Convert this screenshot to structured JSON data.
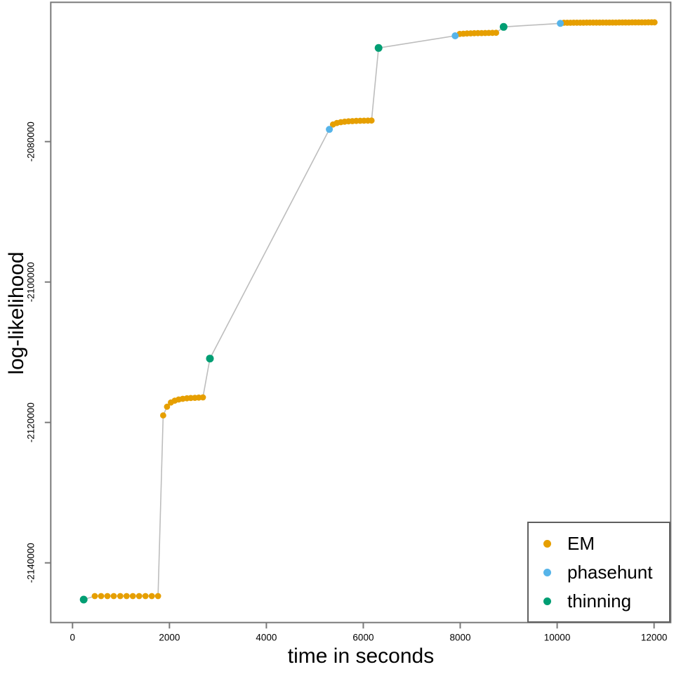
{
  "chart_data": {
    "type": "scatter",
    "title": "",
    "xlabel": "time in seconds",
    "ylabel": "log-likelihood",
    "grid": false,
    "legend_position": "bottom-right",
    "xlim": [
      -449,
      12343
    ],
    "ylim": [
      -2148500,
      -2060160
    ],
    "x_ticks": [
      0,
      2000,
      4000,
      6000,
      8000,
      10000,
      12000
    ],
    "y_ticks": [
      -2080000,
      -2100000,
      -2120000,
      -2140000
    ],
    "line_color": "#bdbdbd",
    "axis_color": "#7a7a7a",
    "tick_label_color": "#000000",
    "series": [
      {
        "name": "EM",
        "color": "#E69F00",
        "marker_radius": 4.4,
        "points": [
          [
            460,
            -2144730
          ],
          [
            590,
            -2144730
          ],
          [
            720,
            -2144730
          ],
          [
            850,
            -2144730
          ],
          [
            985,
            -2144730
          ],
          [
            1115,
            -2144730
          ],
          [
            1245,
            -2144730
          ],
          [
            1375,
            -2144730
          ],
          [
            1505,
            -2144730
          ],
          [
            1635,
            -2144730
          ],
          [
            1765,
            -2144730
          ],
          [
            1870,
            -2119000
          ],
          [
            1950,
            -2117760
          ],
          [
            2030,
            -2117160
          ],
          [
            2110,
            -2116900
          ],
          [
            2190,
            -2116730
          ],
          [
            2275,
            -2116630
          ],
          [
            2360,
            -2116560
          ],
          [
            2440,
            -2116520
          ],
          [
            2525,
            -2116490
          ],
          [
            2605,
            -2116460
          ],
          [
            2690,
            -2116430
          ],
          [
            5375,
            -2077560
          ],
          [
            5455,
            -2077350
          ],
          [
            5535,
            -2077230
          ],
          [
            5615,
            -2077160
          ],
          [
            5695,
            -2077110
          ],
          [
            5775,
            -2077080
          ],
          [
            5855,
            -2077050
          ],
          [
            5935,
            -2077030
          ],
          [
            6015,
            -2077020
          ],
          [
            6095,
            -2077010
          ],
          [
            6170,
            -2077000
          ],
          [
            7990,
            -2064660
          ],
          [
            8065,
            -2064630
          ],
          [
            8140,
            -2064600
          ],
          [
            8215,
            -2064580
          ],
          [
            8290,
            -2064560
          ],
          [
            8365,
            -2064550
          ],
          [
            8440,
            -2064540
          ],
          [
            8515,
            -2064530
          ],
          [
            8590,
            -2064520
          ],
          [
            8665,
            -2064510
          ],
          [
            8740,
            -2064500
          ],
          [
            10140,
            -2063070
          ],
          [
            10207,
            -2063068
          ],
          [
            10274,
            -2063066
          ],
          [
            10341,
            -2063064
          ],
          [
            10408,
            -2063061
          ],
          [
            10475,
            -2063059
          ],
          [
            10542,
            -2063057
          ],
          [
            10609,
            -2063055
          ],
          [
            10676,
            -2063053
          ],
          [
            10743,
            -2063051
          ],
          [
            10810,
            -2063049
          ],
          [
            10877,
            -2063046
          ],
          [
            10944,
            -2063044
          ],
          [
            11011,
            -2063042
          ],
          [
            11078,
            -2063040
          ],
          [
            11145,
            -2063038
          ],
          [
            11212,
            -2063036
          ],
          [
            11279,
            -2063034
          ],
          [
            11346,
            -2063031
          ],
          [
            11413,
            -2063029
          ],
          [
            11480,
            -2063027
          ],
          [
            11547,
            -2063025
          ],
          [
            11614,
            -2063023
          ],
          [
            11681,
            -2063021
          ],
          [
            11748,
            -2063019
          ],
          [
            11815,
            -2063016
          ],
          [
            11882,
            -2063014
          ],
          [
            11949,
            -2063012
          ],
          [
            12010,
            -2063010
          ]
        ]
      },
      {
        "name": "phasehunt",
        "color": "#56B4E9",
        "marker_radius": 5.0,
        "points": [
          [
            5300,
            -2078260
          ],
          [
            7895,
            -2064930
          ],
          [
            10065,
            -2063160
          ]
        ]
      },
      {
        "name": "thinning",
        "color": "#009E73",
        "marker_radius": 5.5,
        "points": [
          [
            230,
            -2145230
          ],
          [
            2835,
            -2110900
          ],
          [
            6315,
            -2066660
          ],
          [
            8895,
            -2063660
          ]
        ]
      }
    ]
  }
}
